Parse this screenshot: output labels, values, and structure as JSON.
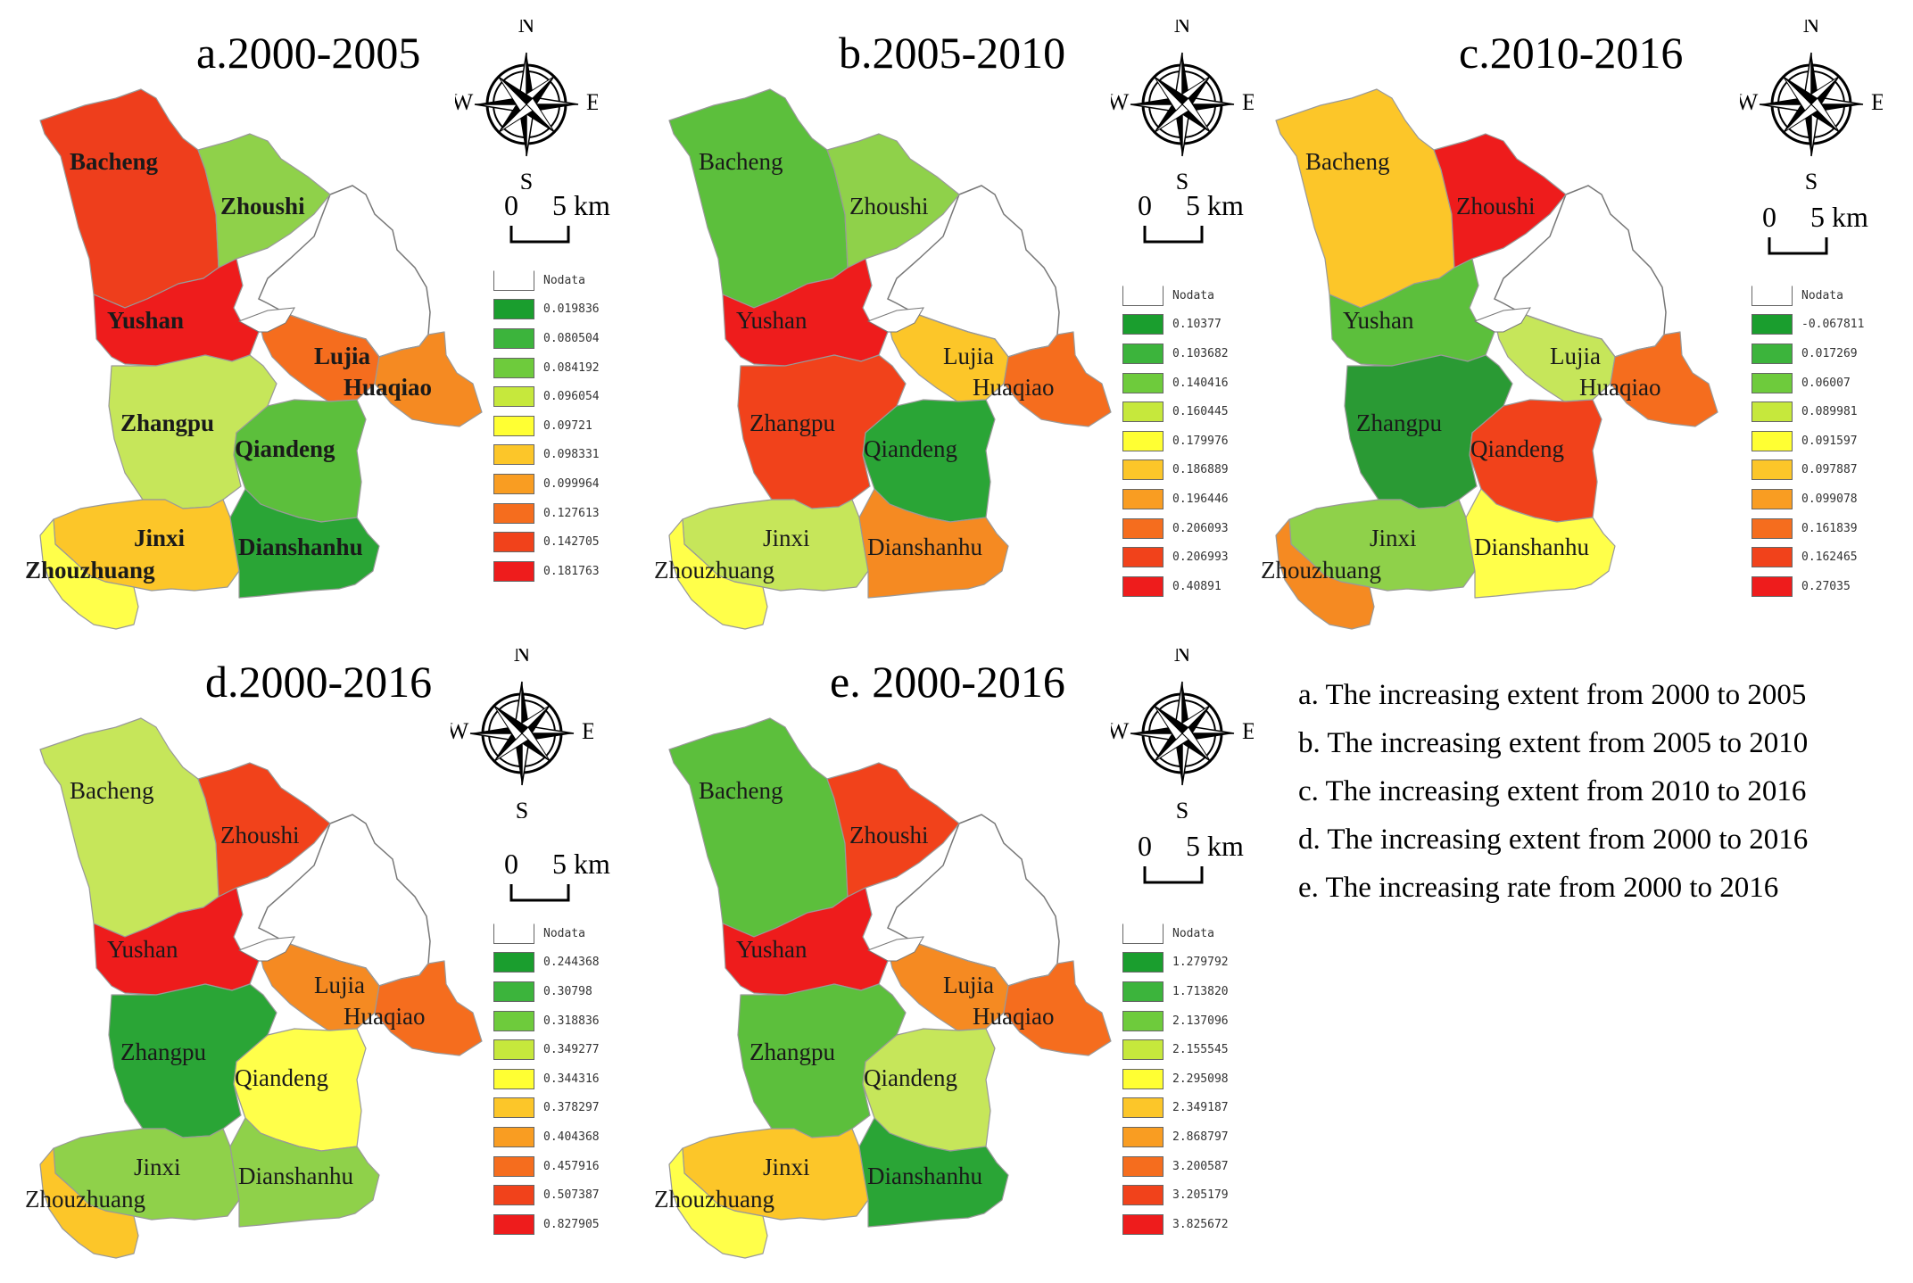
{
  "towns": [
    "Bacheng",
    "Zhoushi",
    "Yushan",
    "Lujia",
    "Huaqiao",
    "Zhangpu",
    "Qiandeng",
    "Jinxi",
    "Dianshanhu",
    "Zhouzhuang"
  ],
  "compass_letters": {
    "n": "N",
    "s": "S",
    "e": "E",
    "w": "W"
  },
  "scale_text": {
    "zero": "0",
    "five": "5 km"
  },
  "panels": [
    {
      "id": "a",
      "title": "a.2000-2005",
      "bold_labels": true,
      "legend": {
        "nodata_label": "Nodata",
        "colors": [
          "#1a9e2e",
          "#3cb43c",
          "#6ecb3c",
          "#c6e83c",
          "#ffff33",
          "#fcc629",
          "#f99d22",
          "#f56d1e",
          "#f1421b",
          "#ee1c1c"
        ],
        "values": [
          "0.019836",
          "0.080504",
          "0.084192",
          "0.096054",
          "0.09721",
          "0.098331",
          "0.099964",
          "0.127613",
          "0.142705",
          "0.181763"
        ]
      },
      "town_colors": {
        "Bacheng": "#ee3e1c",
        "Zhoushi": "#8fd14a",
        "Yushan": "#ee1c1c",
        "Lujia": "#f56d1e",
        "Huaqiao": "#f58a22",
        "Zhangpu": "#c6e65a",
        "Qiandeng": "#5cbf3c",
        "Jinxi": "#fcc629",
        "Dianshanhu": "#2aa536",
        "Zhouzhuang": "#ffff4a"
      }
    },
    {
      "id": "b",
      "title": "b.2005-2010",
      "bold_labels": false,
      "legend": {
        "nodata_label": "Nodata",
        "colors": [
          "#1a9e2e",
          "#3cb43c",
          "#6ecb3c",
          "#c6e83c",
          "#ffff33",
          "#fcc629",
          "#f99d22",
          "#f56d1e",
          "#f1421b",
          "#ee1c1c"
        ],
        "values": [
          "0.10377",
          "0.103682",
          "0.140416",
          "0.160445",
          "0.179976",
          "0.186889",
          "0.196446",
          "0.206093",
          "0.206993",
          "0.40891"
        ]
      },
      "town_colors": {
        "Bacheng": "#5cbf3c",
        "Zhoushi": "#8fd14a",
        "Yushan": "#ee1c1c",
        "Lujia": "#fcc629",
        "Huaqiao": "#f56d1e",
        "Zhangpu": "#f1421b",
        "Qiandeng": "#2aa536",
        "Jinxi": "#c6e65a",
        "Dianshanhu": "#f58a22",
        "Zhouzhuang": "#ffff4a"
      }
    },
    {
      "id": "c",
      "title": "c.2010-2016",
      "bold_labels": false,
      "legend": {
        "nodata_label": "Nodata",
        "colors": [
          "#1a9e2e",
          "#3cb43c",
          "#6ecb3c",
          "#c6e83c",
          "#ffff33",
          "#fcc629",
          "#f99d22",
          "#f56d1e",
          "#f1421b",
          "#ee1c1c"
        ],
        "values": [
          "-0.067811",
          "0.017269",
          "0.06007",
          "0.089981",
          "0.091597",
          "0.097887",
          "0.099078",
          "0.161839",
          "0.162465",
          "0.27035"
        ]
      },
      "town_colors": {
        "Bacheng": "#fcc629",
        "Zhoushi": "#ee1c1c",
        "Yushan": "#5cbf3c",
        "Lujia": "#c6e65a",
        "Huaqiao": "#f56d1e",
        "Zhangpu": "#2a9a34",
        "Qiandeng": "#f1421b",
        "Jinxi": "#8fd14a",
        "Dianshanhu": "#ffff4a",
        "Zhouzhuang": "#f58a22"
      }
    },
    {
      "id": "d",
      "title": "d.2000-2016",
      "bold_labels": false,
      "legend": {
        "nodata_label": "Nodata",
        "colors": [
          "#1a9e2e",
          "#3cb43c",
          "#6ecb3c",
          "#c6e83c",
          "#ffff33",
          "#fcc629",
          "#f99d22",
          "#f56d1e",
          "#f1421b",
          "#ee1c1c"
        ],
        "values": [
          "0.244368",
          "0.30798",
          "0.318836",
          "0.349277",
          "0.344316",
          "0.378297",
          "0.404368",
          "0.457916",
          "0.507387",
          "0.827905"
        ]
      },
      "town_colors": {
        "Bacheng": "#c6e65a",
        "Zhoushi": "#f1421b",
        "Yushan": "#ee1c1c",
        "Lujia": "#f58a22",
        "Huaqiao": "#f56d1e",
        "Zhangpu": "#2aa536",
        "Qiandeng": "#ffff4a",
        "Jinxi": "#8fd14a",
        "Dianshanhu": "#8fd14a",
        "Zhouzhuang": "#fcc629"
      }
    },
    {
      "id": "e",
      "title": "e. 2000-2016",
      "bold_labels": false,
      "legend": {
        "nodata_label": "Nodata",
        "colors": [
          "#1a9e2e",
          "#3cb43c",
          "#6ecb3c",
          "#c6e83c",
          "#ffff33",
          "#fcc629",
          "#f99d22",
          "#f56d1e",
          "#f1421b",
          "#ee1c1c"
        ],
        "values": [
          "1.279792",
          "1.713820",
          "2.137096",
          "2.155545",
          "2.295098",
          "2.349187",
          "2.868797",
          "3.200587",
          "3.205179",
          "3.825672"
        ]
      },
      "town_colors": {
        "Bacheng": "#5cbf3c",
        "Zhoushi": "#f1421b",
        "Yushan": "#ee1c1c",
        "Lujia": "#f58a22",
        "Huaqiao": "#f56d1e",
        "Zhangpu": "#5cbf3c",
        "Qiandeng": "#c6e65a",
        "Jinxi": "#fcc629",
        "Dianshanhu": "#2aa536",
        "Zhouzhuang": "#ffff4a"
      }
    }
  ],
  "notes": [
    "a. The increasing extent from 2000 to 2005",
    "b. The  increasing extent from 2005 to 2010",
    "c. The  increasing extent from 2010 to 2016",
    "d. The  increasing extent from 2000 to 2016",
    "e. The  increasing rate from 2000 to 2016"
  ]
}
